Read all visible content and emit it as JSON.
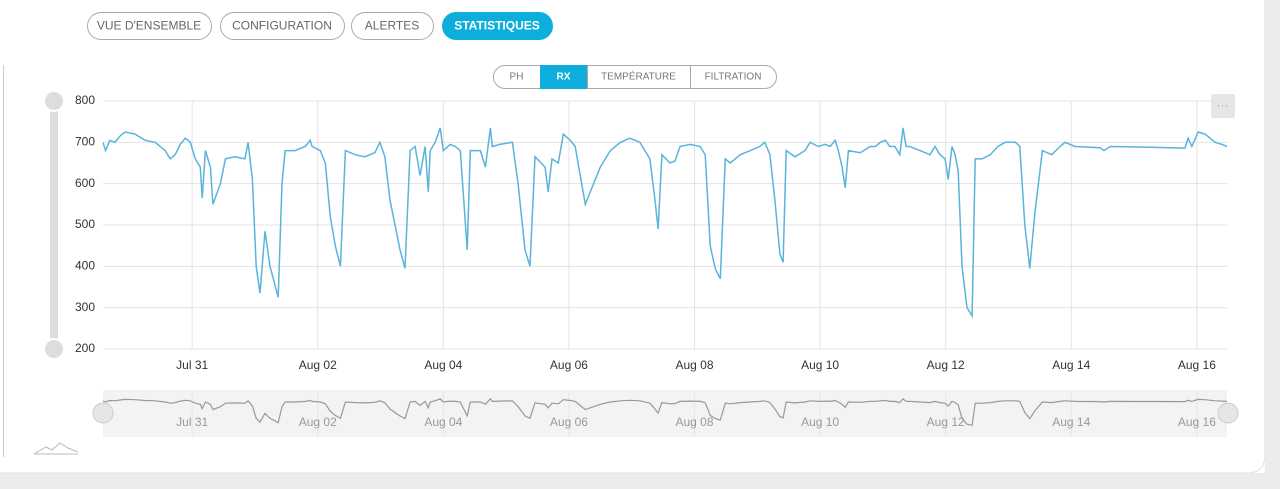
{
  "tabs": [
    "VUE D'ENSEMBLE",
    "CONFIGURATION",
    "ALERTES",
    "STATISTIQUES"
  ],
  "subtabs": [
    "PH",
    "RX",
    "TEMPÉRATURE",
    "FILTRATION"
  ],
  "chart_data": {
    "type": "line",
    "color": "#5ab4dc",
    "navigator_color": "#999999",
    "grid": true,
    "x": [
      -1.42,
      -1.38,
      -1.31,
      -1.23,
      -1.15,
      -1.07,
      -0.91,
      -0.75,
      -0.59,
      -0.43,
      -0.35,
      -0.27,
      -0.19,
      -0.11,
      -0.03,
      0.05,
      0.13,
      0.16,
      0.21,
      0.29,
      0.33,
      0.45,
      0.53,
      0.68,
      0.84,
      0.89,
      0.96,
      1.02,
      1.08,
      1.16,
      1.24,
      1.37,
      1.43,
      1.48,
      1.64,
      1.8,
      1.88,
      1.91,
      2.04,
      2.12,
      2.2,
      2.28,
      2.36,
      2.44,
      2.6,
      2.75,
      2.91,
      2.99,
      3.07,
      3.15,
      3.31,
      3.39,
      3.47,
      3.55,
      3.63,
      3.71,
      3.76,
      3.79,
      3.87,
      3.95,
      4.0,
      4.11,
      4.19,
      4.27,
      4.38,
      4.43,
      4.59,
      4.67,
      4.75,
      4.78,
      4.9,
      5.1,
      5.19,
      5.3,
      5.38,
      5.46,
      5.62,
      5.67,
      5.73,
      5.83,
      5.91,
      6.02,
      6.1,
      6.18,
      6.26,
      6.34,
      6.5,
      6.66,
      6.82,
      6.97,
      7.13,
      7.29,
      7.37,
      7.42,
      7.48,
      7.61,
      7.69,
      7.77,
      7.93,
      8.09,
      8.17,
      8.25,
      8.33,
      8.41,
      8.49,
      8.57,
      8.73,
      8.89,
      9.04,
      9.12,
      9.2,
      9.28,
      9.36,
      9.41,
      9.46,
      9.6,
      9.76,
      9.84,
      9.97,
      10.08,
      10.16,
      10.24,
      10.29,
      10.35,
      10.4,
      10.45,
      10.64,
      10.8,
      10.88,
      10.96,
      11.04,
      11.11,
      11.19,
      11.27,
      11.32,
      11.37,
      11.43,
      11.59,
      11.75,
      11.83,
      11.91,
      11.99,
      12.04,
      12.1,
      12.15,
      12.2,
      12.26,
      12.34,
      12.42,
      12.47,
      12.58,
      12.71,
      12.83,
      12.95,
      13.11,
      13.18,
      13.26,
      13.34,
      13.42,
      13.54,
      13.69,
      13.82,
      13.9,
      14.06,
      14.46,
      14.52,
      14.62,
      15.25,
      15.81,
      15.86,
      15.92,
      16.02,
      16.13,
      16.29,
      16.4,
      16.48
    ],
    "values": [
      700,
      680,
      705,
      700,
      715,
      725,
      720,
      705,
      700,
      680,
      660,
      670,
      695,
      710,
      700,
      660,
      640,
      565,
      680,
      640,
      550,
      600,
      660,
      665,
      660,
      700,
      610,
      400,
      335,
      485,
      400,
      325,
      600,
      680,
      680,
      690,
      705,
      690,
      680,
      650,
      520,
      450,
      400,
      680,
      670,
      665,
      675,
      700,
      665,
      560,
      440,
      395,
      680,
      690,
      620,
      690,
      580,
      680,
      700,
      735,
      680,
      695,
      690,
      680,
      440,
      680,
      680,
      640,
      735,
      690,
      695,
      700,
      600,
      440,
      400,
      665,
      640,
      580,
      660,
      650,
      720,
      705,
      690,
      620,
      550,
      580,
      640,
      680,
      700,
      710,
      700,
      660,
      560,
      490,
      670,
      650,
      655,
      690,
      695,
      690,
      670,
      450,
      395,
      370,
      660,
      650,
      670,
      680,
      690,
      700,
      670,
      560,
      430,
      410,
      680,
      665,
      680,
      700,
      690,
      695,
      690,
      705,
      680,
      640,
      590,
      680,
      675,
      690,
      690,
      700,
      705,
      690,
      690,
      670,
      735,
      690,
      690,
      680,
      670,
      690,
      670,
      660,
      610,
      690,
      670,
      630,
      400,
      300,
      280,
      660,
      660,
      670,
      690,
      700,
      700,
      690,
      500,
      395,
      530,
      680,
      670,
      690,
      700,
      690,
      687,
      680,
      690,
      688,
      686,
      710,
      690,
      725,
      720,
      700,
      695,
      690
    ],
    "xlim": [
      -1.42,
      16.48
    ],
    "xticks": [
      {
        "value": 0,
        "label": "Jul 31"
      },
      {
        "value": 2,
        "label": "Aug 02"
      },
      {
        "value": 4,
        "label": "Aug 04"
      },
      {
        "value": 6,
        "label": "Aug 06"
      },
      {
        "value": 8,
        "label": "Aug 08"
      },
      {
        "value": 10,
        "label": "Aug 10"
      },
      {
        "value": 12,
        "label": "Aug 12"
      },
      {
        "value": 14,
        "label": "Aug 14"
      },
      {
        "value": 16,
        "label": "Aug 16"
      }
    ],
    "ylim": [
      200,
      800
    ],
    "yticks": [
      200,
      300,
      400,
      500,
      600,
      700,
      800
    ]
  }
}
